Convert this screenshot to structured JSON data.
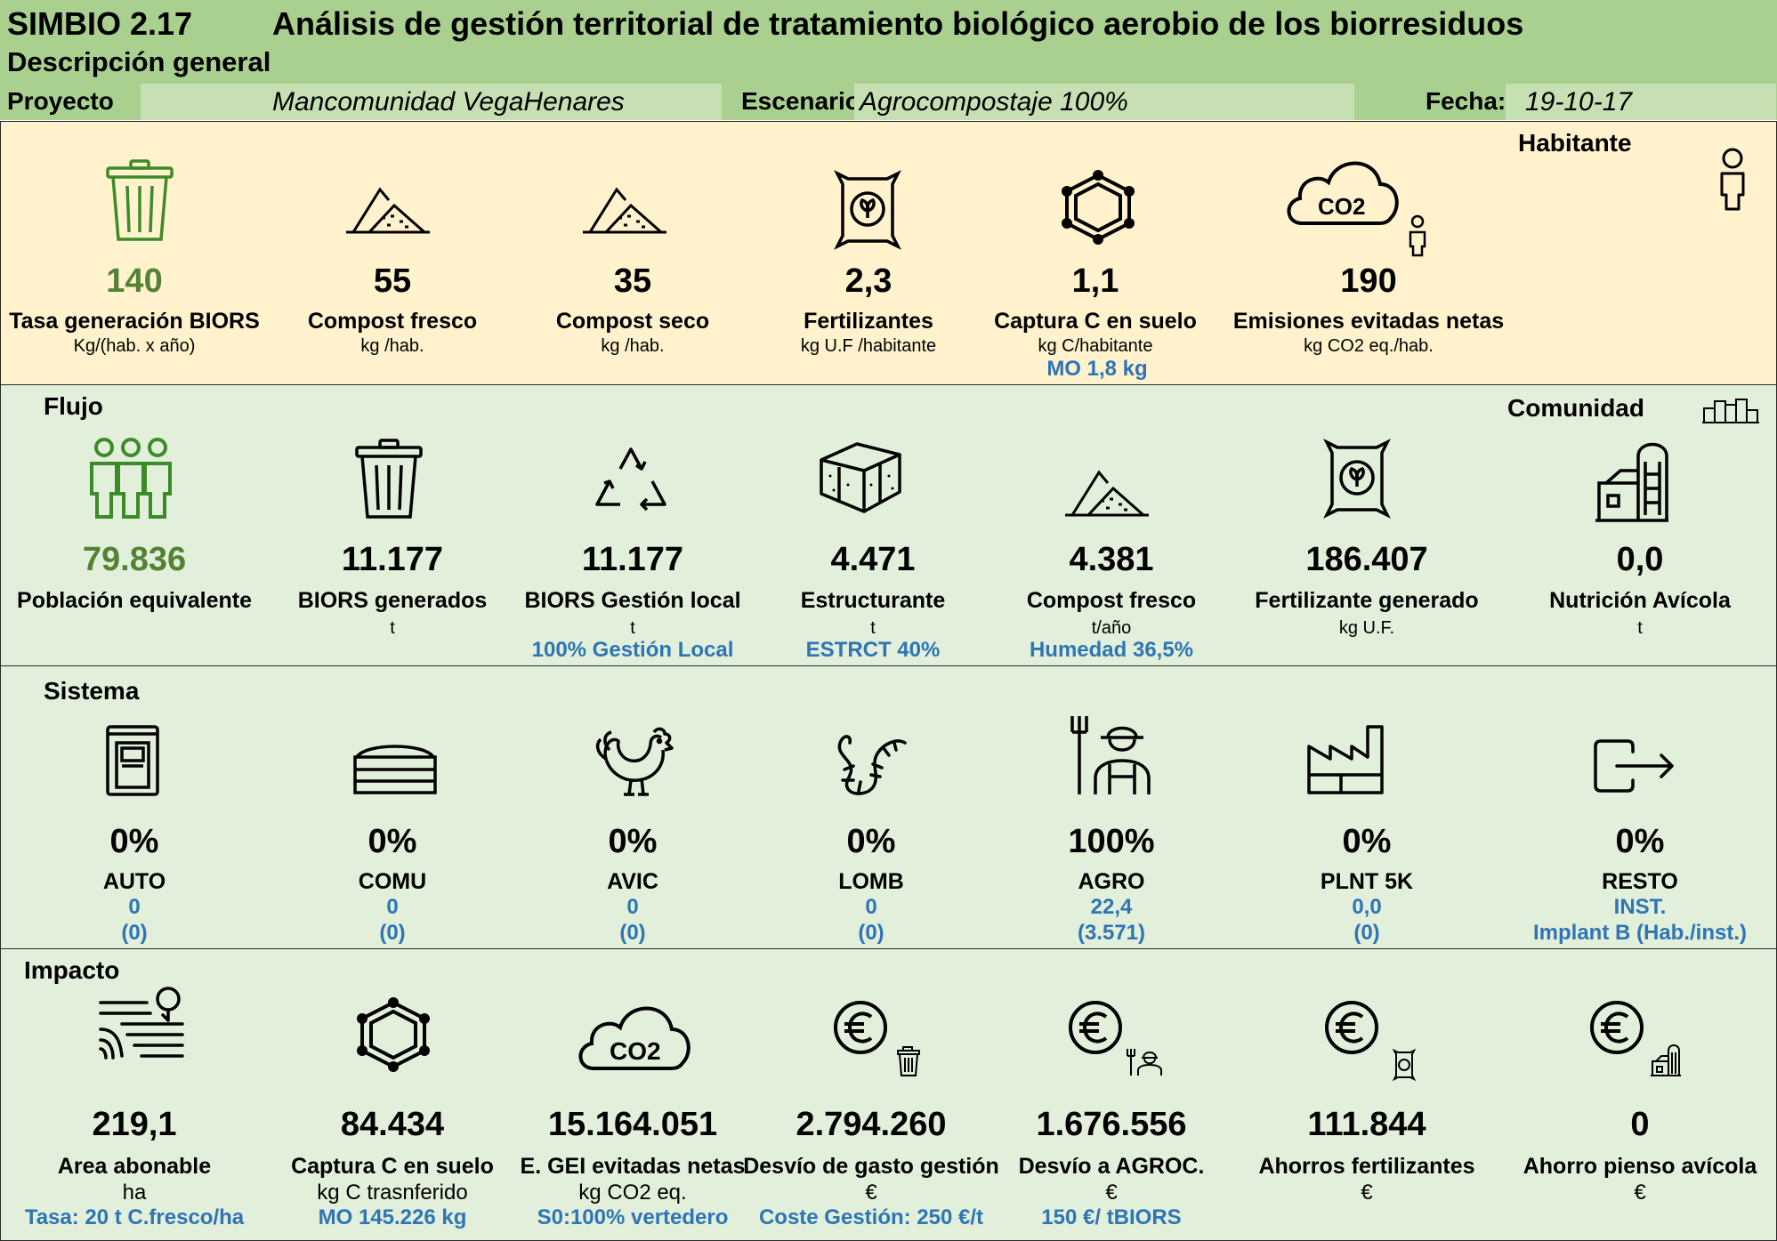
{
  "header": {
    "app": "SIMBIO 2.17",
    "title": "Análisis de gestión territorial de tratamiento biológico aerobio de los biorresiduos",
    "description": "Descripción general",
    "project_label": "Proyecto",
    "project_value": "Mancomunidad VegaHenares",
    "scenario_label": "Escenario:",
    "scenario_value": "Agrocompostaje 100%",
    "date_label": "Fecha:",
    "date_value": "19-10-17"
  },
  "colors": {
    "header_green": "#a9d08e",
    "field_green": "#c6e0b4",
    "habitante_bg": "#fff2cc",
    "section_bg": "#e2efda",
    "value_green": "#548235",
    "note_blue": "#2e75b6"
  },
  "habitante": {
    "title": "Habitante",
    "icon": "person-icon",
    "items": [
      {
        "icon": "trash-bin-icon",
        "value": "140",
        "name": "Tasa generación BIORS",
        "unit": "Kg/(hab. x año)",
        "note": ""
      },
      {
        "icon": "compost-pile-icon",
        "value": "55",
        "name": "Compost fresco",
        "unit": "kg /hab.",
        "note": ""
      },
      {
        "icon": "compost-pile-icon",
        "value": "35",
        "name": "Compost seco",
        "unit": "kg /hab.",
        "note": ""
      },
      {
        "icon": "fertilizer-bag-icon",
        "value": "2,3",
        "name": "Fertilizantes",
        "unit": "kg U.F /habitante",
        "note": ""
      },
      {
        "icon": "carbon-molecule-icon",
        "value": "1,1",
        "name": "Captura C en suelo",
        "unit": "kg C/habitante",
        "note": "MO  1,8 kg"
      },
      {
        "icon": "co2-cloud-icon",
        "value": "190",
        "name": "Emisiones evitadas netas",
        "unit": "kg CO2 eq./hab.",
        "note": ""
      }
    ]
  },
  "flujo": {
    "title": "Flujo",
    "community_title": "Comunidad",
    "community_icon": "city-icon",
    "items": [
      {
        "icon": "population-icon",
        "value": "79.836",
        "name": "Población equivalente",
        "unit": "",
        "note": ""
      },
      {
        "icon": "trash-bin-icon",
        "value": "11.177",
        "name": "BIORS  generados",
        "unit": "t",
        "note": ""
      },
      {
        "icon": "recycle-icon",
        "value": "11.177",
        "name": "BIORS  Gestión local",
        "unit": "t",
        "note": "100% Gestión Local"
      },
      {
        "icon": "bale-icon",
        "value": "4.471",
        "name": "Estructurante",
        "unit": "t",
        "note": "ESTRCT 40%"
      },
      {
        "icon": "compost-pile-icon",
        "value": "4.381",
        "name": "Compost fresco",
        "unit": "t/año",
        "note": "Humedad 36,5%"
      },
      {
        "icon": "fertilizer-bag-icon",
        "value": "186.407",
        "name": "Fertilizante generado",
        "unit": "kg U.F.",
        "note": ""
      },
      {
        "icon": "silo-barn-icon",
        "value": "0,0",
        "name": "Nutrición  Avícola",
        "unit": "t",
        "note": ""
      }
    ]
  },
  "sistema": {
    "title": "Sistema",
    "items": [
      {
        "icon": "composter-bin-icon",
        "value": "0%",
        "name": "AUTO",
        "line1": "0",
        "line2": "(0)"
      },
      {
        "icon": "compost-box-icon",
        "value": "0%",
        "name": "COMU",
        "line1": "0",
        "line2": "(0)"
      },
      {
        "icon": "rooster-icon",
        "value": "0%",
        "name": "AVIC",
        "line1": "0",
        "line2": "(0)"
      },
      {
        "icon": "worm-icon",
        "value": "0%",
        "name": "LOMB",
        "line1": "0",
        "line2": "(0)"
      },
      {
        "icon": "farmer-icon",
        "value": "100%",
        "name": "AGRO",
        "line1": "22,4",
        "line2": "(3.571)"
      },
      {
        "icon": "factory-icon",
        "value": "0%",
        "name": "PLNT 5K",
        "line1": "0,0",
        "line2": "(0)"
      },
      {
        "icon": "exit-arrow-icon",
        "value": "0%",
        "name": "RESTO",
        "line1": "INST.",
        "line2": "Implant B (Hab./inst.)"
      }
    ]
  },
  "impacto": {
    "title": "Impacto",
    "items": [
      {
        "icon": "field-icon",
        "value": "219,1",
        "name": "Area abonable",
        "unit": "ha",
        "note": "Tasa: 20 t C.fresco/ha"
      },
      {
        "icon": "carbon-molecule-icon",
        "value": "84.434",
        "name": "Captura C en suelo",
        "unit": "kg C trasnferido",
        "note": "MO  145.226 kg"
      },
      {
        "icon": "co2-cloud-icon",
        "value": "15.164.051",
        "name": "E. GEI evitadas netas",
        "unit": "kg CO2 eq.",
        "note": "S0:100% vertedero"
      },
      {
        "icon": "euro-trash-icon",
        "value": "2.794.260",
        "name": "Desvío de gasto gestión",
        "unit": "€",
        "note": "Coste Gestión: 250 €/t"
      },
      {
        "icon": "euro-farmer-icon",
        "value": "1.676.556",
        "name": "Desvío a AGROC.",
        "unit": "€",
        "note": "150 €/ tBIORS"
      },
      {
        "icon": "euro-fertilizer-icon",
        "value": "111.844",
        "name": "Ahorros fertilizantes",
        "unit": "€",
        "note": ""
      },
      {
        "icon": "euro-silo-icon",
        "value": "0",
        "name": "Ahorro pienso avícola",
        "unit": "€",
        "note": ""
      }
    ]
  }
}
